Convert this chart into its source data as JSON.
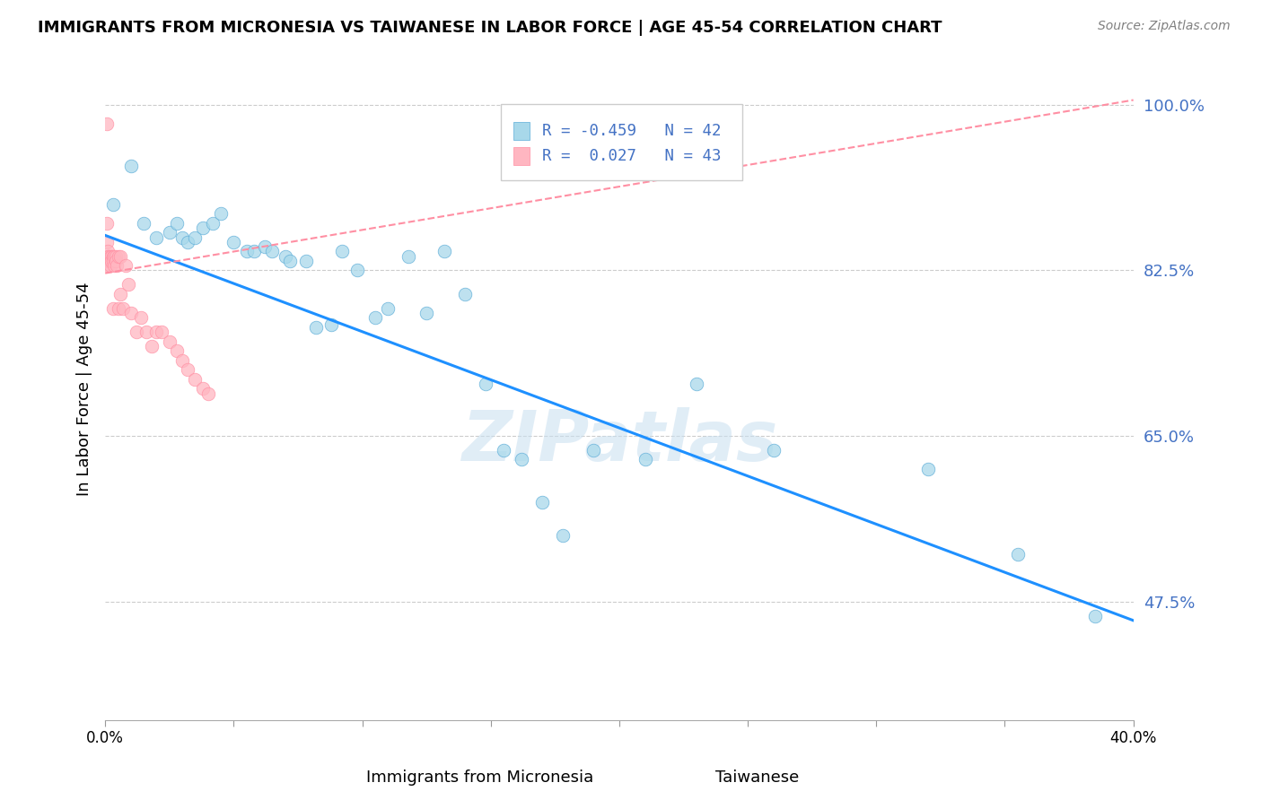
{
  "title": "IMMIGRANTS FROM MICRONESIA VS TAIWANESE IN LABOR FORCE | AGE 45-54 CORRELATION CHART",
  "source": "Source: ZipAtlas.com",
  "xlabel_micronesia": "Immigrants from Micronesia",
  "xlabel_taiwanese": "Taiwanese",
  "ylabel": "In Labor Force | Age 45-54",
  "R_micronesia": -0.459,
  "N_micronesia": 42,
  "R_taiwanese": 0.027,
  "N_taiwanese": 43,
  "xlim": [
    0.0,
    0.4
  ],
  "ylim": [
    0.35,
    1.05
  ],
  "yticks": [
    0.475,
    0.65,
    0.825,
    1.0
  ],
  "ytick_labels": [
    "47.5%",
    "65.0%",
    "82.5%",
    "100.0%"
  ],
  "xticks": [
    0.0,
    0.05,
    0.1,
    0.15,
    0.2,
    0.25,
    0.3,
    0.35,
    0.4
  ],
  "xtick_labels": [
    "0.0%",
    "",
    "",
    "",
    "",
    "",
    "",
    "",
    "40.0%"
  ],
  "color_micronesia": "#A8D8EA",
  "color_taiwanese": "#FFB6C1",
  "line_color_micronesia": "#1E90FF",
  "line_color_taiwanese": "#FF8FA3",
  "watermark": "ZIPatlas",
  "micronesia_x": [
    0.003,
    0.01,
    0.015,
    0.02,
    0.025,
    0.028,
    0.03,
    0.032,
    0.035,
    0.038,
    0.042,
    0.045,
    0.05,
    0.055,
    0.058,
    0.062,
    0.065,
    0.07,
    0.072,
    0.078,
    0.082,
    0.088,
    0.092,
    0.098,
    0.105,
    0.11,
    0.118,
    0.125,
    0.132,
    0.14,
    0.148,
    0.155,
    0.162,
    0.17,
    0.178,
    0.19,
    0.21,
    0.23,
    0.26,
    0.32,
    0.355,
    0.385
  ],
  "micronesia_y": [
    0.895,
    0.935,
    0.875,
    0.86,
    0.865,
    0.875,
    0.86,
    0.855,
    0.86,
    0.87,
    0.875,
    0.885,
    0.855,
    0.845,
    0.845,
    0.85,
    0.845,
    0.84,
    0.835,
    0.835,
    0.765,
    0.768,
    0.845,
    0.825,
    0.775,
    0.785,
    0.84,
    0.78,
    0.845,
    0.8,
    0.705,
    0.635,
    0.625,
    0.58,
    0.545,
    0.635,
    0.625,
    0.705,
    0.635,
    0.615,
    0.525,
    0.46
  ],
  "taiwanese_x": [
    0.0005,
    0.0005,
    0.0005,
    0.001,
    0.001,
    0.001,
    0.001,
    0.0015,
    0.0015,
    0.002,
    0.002,
    0.002,
    0.0025,
    0.0025,
    0.003,
    0.003,
    0.003,
    0.0035,
    0.0035,
    0.004,
    0.004,
    0.0045,
    0.005,
    0.005,
    0.006,
    0.006,
    0.007,
    0.008,
    0.009,
    0.01,
    0.012,
    0.014,
    0.016,
    0.018,
    0.02,
    0.022,
    0.025,
    0.028,
    0.03,
    0.032,
    0.035,
    0.038,
    0.04
  ],
  "taiwanese_y": [
    0.98,
    0.875,
    0.855,
    0.845,
    0.84,
    0.835,
    0.83,
    0.84,
    0.835,
    0.84,
    0.835,
    0.83,
    0.84,
    0.835,
    0.84,
    0.835,
    0.785,
    0.84,
    0.83,
    0.84,
    0.835,
    0.83,
    0.84,
    0.785,
    0.84,
    0.8,
    0.785,
    0.83,
    0.81,
    0.78,
    0.76,
    0.775,
    0.76,
    0.745,
    0.76,
    0.76,
    0.75,
    0.74,
    0.73,
    0.72,
    0.71,
    0.7,
    0.695
  ],
  "trend_mic_x0": 0.0,
  "trend_mic_x1": 0.4,
  "trend_mic_y0": 0.862,
  "trend_mic_y1": 0.455,
  "trend_tai_x0": 0.0,
  "trend_tai_x1": 0.4,
  "trend_tai_y0": 0.822,
  "trend_tai_y1": 1.005
}
